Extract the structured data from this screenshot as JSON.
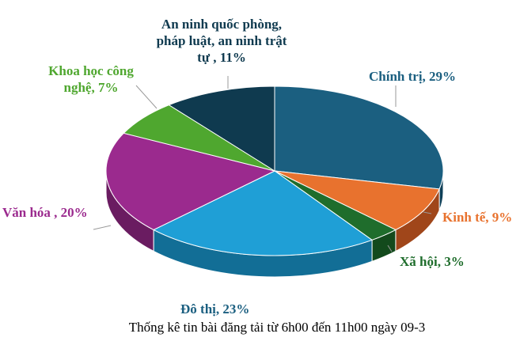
{
  "chart_data": {
    "type": "pie",
    "style": "3d",
    "caption": "Thống kê tin bài đăng tải từ 6h00 đến 11h00 ngày 09-3",
    "slices": [
      {
        "label": "Chính trị, 29%",
        "value": 29,
        "color": "#1b5f80",
        "side": "#0f3f57"
      },
      {
        "label": "Kinh tế, 9%",
        "value": 9,
        "color": "#e8722e",
        "side": "#a0461a"
      },
      {
        "label": "Xã hội, 3%",
        "value": 3,
        "color": "#1f6d2c",
        "side": "#134a1c"
      },
      {
        "label": "Đô thị, 23%",
        "value": 23,
        "color": "#1f9fd6",
        "side": "#126e96"
      },
      {
        "label": "Văn hóa , 20%",
        "value": 20,
        "color": "#9b2a8e",
        "side": "#6a1c61"
      },
      {
        "label": "Khoa học công nghệ, 7%",
        "value": 7,
        "color": "#4fa72f",
        "side": "#35721f"
      },
      {
        "label": "An ninh quốc phòng, pháp luật, an ninh trật tự , 11%",
        "value": 11,
        "color": "#0f3a4f",
        "side": "#08222f"
      }
    ]
  }
}
